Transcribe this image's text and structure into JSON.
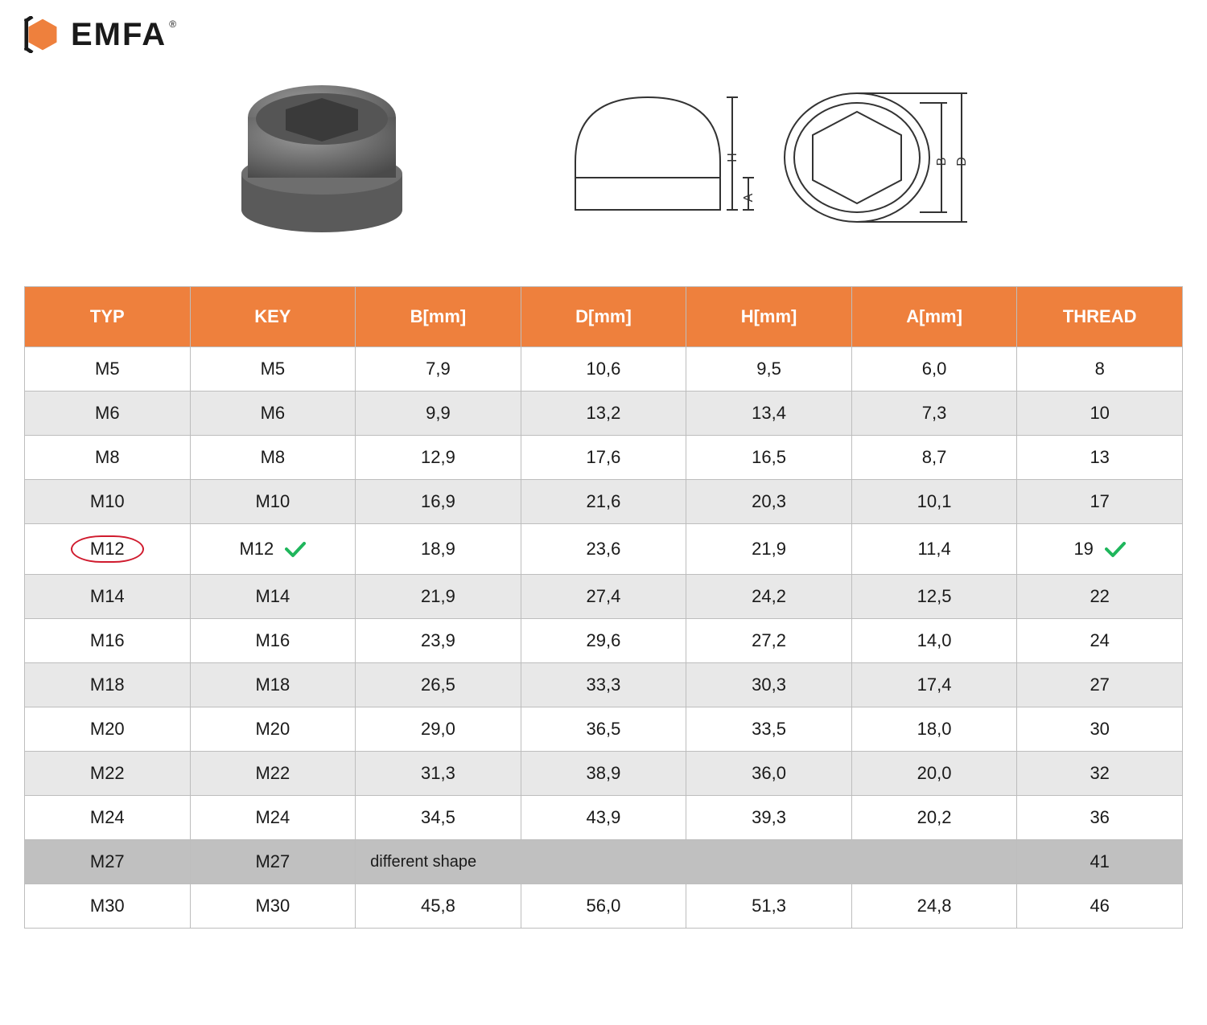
{
  "brand": {
    "name": "EMFA",
    "reg_mark": "®"
  },
  "logo_colors": {
    "hex_fill": "#ee803d",
    "bracket": "#1a1a1a"
  },
  "header_bg": "#ee803d",
  "header_fg": "#ffffff",
  "row_even_bg": "#e8e8e8",
  "row_dark_bg": "#c0c0c0",
  "border_color": "#bdbdbd",
  "check_color": "#1fb65c",
  "circle_color": "#d01b2e",
  "product_fill": "#6a6a6a",
  "diagram_stroke": "#333333",
  "diagram_labels": {
    "H": "H",
    "A": "A",
    "B": "B",
    "D": "D"
  },
  "columns": [
    "TYP",
    "KEY",
    "B[mm]",
    "D[mm]",
    "H[mm]",
    "A[mm]",
    "THREAD"
  ],
  "highlighted_row_index": 4,
  "m27_note": "different shape",
  "rows": [
    {
      "typ": "M5",
      "key": "M5",
      "b": "7,9",
      "d": "10,6",
      "h": "9,5",
      "a": "6,0",
      "thread": "8"
    },
    {
      "typ": "M6",
      "key": "M6",
      "b": "9,9",
      "d": "13,2",
      "h": "13,4",
      "a": "7,3",
      "thread": "10"
    },
    {
      "typ": "M8",
      "key": "M8",
      "b": "12,9",
      "d": "17,6",
      "h": "16,5",
      "a": "8,7",
      "thread": "13"
    },
    {
      "typ": "M10",
      "key": "M10",
      "b": "16,9",
      "d": "21,6",
      "h": "20,3",
      "a": "10,1",
      "thread": "17"
    },
    {
      "typ": "M12",
      "key": "M12",
      "b": "18,9",
      "d": "23,6",
      "h": "21,9",
      "a": "11,4",
      "thread": "19"
    },
    {
      "typ": "M14",
      "key": "M14",
      "b": "21,9",
      "d": "27,4",
      "h": "24,2",
      "a": "12,5",
      "thread": "22"
    },
    {
      "typ": "M16",
      "key": "M16",
      "b": "23,9",
      "d": "29,6",
      "h": "27,2",
      "a": "14,0",
      "thread": "24"
    },
    {
      "typ": "M18",
      "key": "M18",
      "b": "26,5",
      "d": "33,3",
      "h": "30,3",
      "a": "17,4",
      "thread": "27"
    },
    {
      "typ": "M20",
      "key": "M20",
      "b": "29,0",
      "d": "36,5",
      "h": "33,5",
      "a": "18,0",
      "thread": "30"
    },
    {
      "typ": "M22",
      "key": "M22",
      "b": "31,3",
      "d": "38,9",
      "h": "36,0",
      "a": "20,0",
      "thread": "32"
    },
    {
      "typ": "M24",
      "key": "M24",
      "b": "34,5",
      "d": "43,9",
      "h": "39,3",
      "a": "20,2",
      "thread": "36"
    },
    {
      "typ": "M27",
      "key": "M27",
      "b": "",
      "d": "",
      "h": "",
      "a": "",
      "thread": "41",
      "special": true
    },
    {
      "typ": "M30",
      "key": "M30",
      "b": "45,8",
      "d": "56,0",
      "h": "51,3",
      "a": "24,8",
      "thread": "46"
    }
  ]
}
